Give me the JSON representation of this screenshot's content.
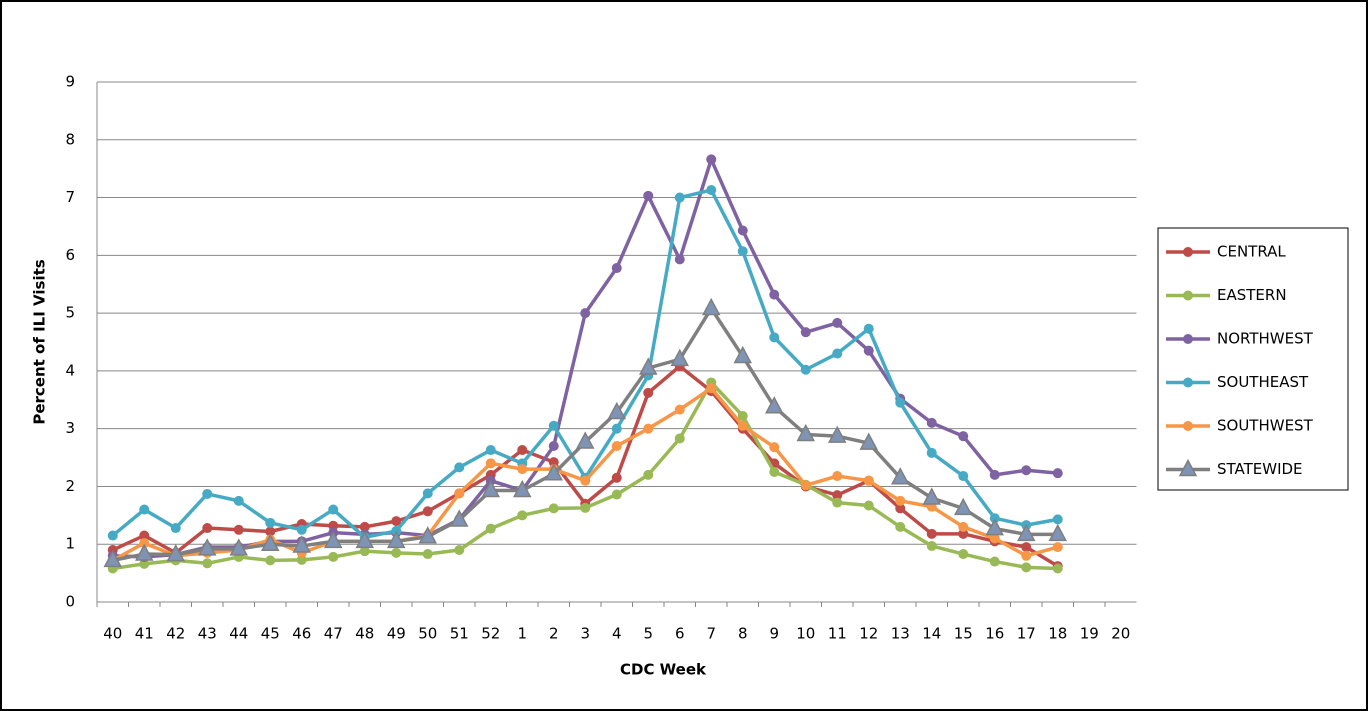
{
  "chart_data": {
    "type": "line",
    "x_label": "CDC Week",
    "y_label": "Percent of ILI Visits",
    "categories": [
      "40",
      "41",
      "42",
      "43",
      "44",
      "45",
      "46",
      "47",
      "48",
      "49",
      "50",
      "51",
      "52",
      "1",
      "2",
      "3",
      "4",
      "5",
      "6",
      "7",
      "8",
      "9",
      "10",
      "11",
      "12",
      "13",
      "14",
      "15",
      "16",
      "17",
      "18",
      "19",
      "20"
    ],
    "ylim": [
      0,
      9
    ],
    "yticks": [
      0,
      1,
      2,
      3,
      4,
      5,
      6,
      7,
      8,
      9
    ],
    "grid": true,
    "legend": "right",
    "series": [
      {
        "name": "CENTRAL",
        "color": "#be4b48",
        "marker": "circle",
        "values": [
          0.9,
          1.15,
          0.85,
          1.28,
          1.25,
          1.22,
          1.35,
          1.32,
          1.3,
          1.4,
          1.57,
          1.88,
          2.2,
          2.63,
          2.42,
          1.7,
          2.15,
          3.62,
          4.08,
          3.65,
          3.0,
          2.4,
          2.0,
          1.85,
          2.1,
          1.62,
          1.18,
          1.18,
          1.05,
          0.95,
          0.62,
          null,
          null
        ]
      },
      {
        "name": "EASTERN",
        "color": "#98b954",
        "marker": "circle",
        "values": [
          0.58,
          0.66,
          0.72,
          0.67,
          0.78,
          0.72,
          0.73,
          0.78,
          0.88,
          0.85,
          0.83,
          0.9,
          1.27,
          1.5,
          1.62,
          1.63,
          1.86,
          2.2,
          2.83,
          3.8,
          3.22,
          2.25,
          2.03,
          1.72,
          1.67,
          1.3,
          0.97,
          0.83,
          0.7,
          0.6,
          0.58,
          null,
          null
        ]
      },
      {
        "name": "NORTHWEST",
        "color": "#7e62a1",
        "marker": "circle",
        "values": [
          0.8,
          0.78,
          0.82,
          0.95,
          0.95,
          1.05,
          1.05,
          1.2,
          1.17,
          1.2,
          1.15,
          1.43,
          2.1,
          1.93,
          2.7,
          5.0,
          5.78,
          7.03,
          5.93,
          7.66,
          6.43,
          5.32,
          4.67,
          4.83,
          4.35,
          3.52,
          3.1,
          2.87,
          2.2,
          2.28,
          2.23,
          null,
          null
        ]
      },
      {
        "name": "SOUTHEAST",
        "color": "#46aac5",
        "marker": "circle",
        "values": [
          1.15,
          1.6,
          1.28,
          1.87,
          1.75,
          1.37,
          1.25,
          1.6,
          1.12,
          1.23,
          1.88,
          2.33,
          2.63,
          2.4,
          3.05,
          2.15,
          3.0,
          3.92,
          7.0,
          7.13,
          6.07,
          4.58,
          4.02,
          4.3,
          4.73,
          3.45,
          2.58,
          2.18,
          1.45,
          1.33,
          1.43,
          null,
          null
        ]
      },
      {
        "name": "SOUTHWEST",
        "color": "#f79646",
        "marker": "circle",
        "values": [
          0.72,
          1.02,
          0.8,
          0.85,
          0.9,
          1.08,
          0.85,
          1.05,
          1.05,
          1.05,
          1.15,
          1.88,
          2.4,
          2.3,
          2.3,
          2.1,
          2.7,
          3.0,
          3.33,
          3.7,
          3.05,
          2.68,
          2.02,
          2.18,
          2.1,
          1.75,
          1.65,
          1.3,
          1.1,
          0.8,
          0.95,
          null,
          null
        ]
      },
      {
        "name": "STATEWIDE",
        "color": "#7f7f7f",
        "marker": "triangle",
        "marker_color": "#7f93b5",
        "values": [
          0.72,
          0.83,
          0.82,
          0.92,
          0.92,
          1.0,
          0.97,
          1.05,
          1.05,
          1.05,
          1.13,
          1.42,
          1.93,
          1.93,
          2.22,
          2.77,
          3.28,
          4.05,
          4.2,
          5.08,
          4.25,
          3.38,
          2.9,
          2.87,
          2.75,
          2.15,
          1.8,
          1.62,
          1.27,
          1.17,
          1.17,
          null,
          null
        ]
      }
    ]
  }
}
